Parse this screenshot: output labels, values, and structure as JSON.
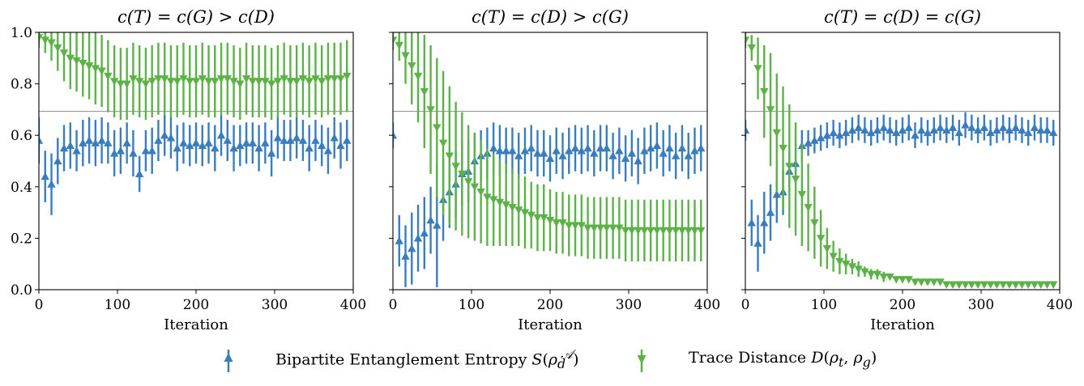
{
  "chart_data": [
    {
      "type": "line",
      "title": "c(T) = c(G) > c(D)",
      "xlabel": "Iteration",
      "ylabel": "",
      "xlim": [
        0,
        400
      ],
      "ylim": [
        0,
        1.0
      ],
      "xticks": [
        "0",
        "100",
        "200",
        "300",
        "400"
      ],
      "yticks": [
        "0.0",
        "0.2",
        "0.4",
        "0.6",
        "0.8",
        "1.0"
      ],
      "reference_line": 0.693,
      "x": [
        0,
        8,
        16,
        24,
        32,
        40,
        48,
        56,
        64,
        72,
        80,
        88,
        96,
        104,
        112,
        120,
        128,
        136,
        144,
        152,
        160,
        168,
        176,
        184,
        192,
        200,
        208,
        216,
        224,
        232,
        240,
        248,
        256,
        264,
        272,
        280,
        288,
        296,
        304,
        312,
        320,
        328,
        336,
        344,
        352,
        360,
        368,
        376,
        384,
        392
      ],
      "series": [
        {
          "name": "Bipartite Entanglement Entropy S(ρ_d^A)",
          "color": "#3a7dbf",
          "marker": "triangle-up",
          "values": [
            0.58,
            0.44,
            0.41,
            0.5,
            0.55,
            0.56,
            0.54,
            0.57,
            0.58,
            0.57,
            0.58,
            0.57,
            0.53,
            0.54,
            0.57,
            0.53,
            0.45,
            0.54,
            0.54,
            0.58,
            0.6,
            0.59,
            0.55,
            0.57,
            0.56,
            0.57,
            0.56,
            0.57,
            0.55,
            0.6,
            0.58,
            0.55,
            0.56,
            0.57,
            0.57,
            0.55,
            0.57,
            0.53,
            0.59,
            0.58,
            0.58,
            0.59,
            0.58,
            0.55,
            0.58,
            0.56,
            0.54,
            0.59,
            0.56,
            0.58
          ],
          "err": [
            0.09,
            0.1,
            0.12,
            0.09,
            0.09,
            0.09,
            0.08,
            0.09,
            0.09,
            0.09,
            0.09,
            0.08,
            0.09,
            0.09,
            0.08,
            0.09,
            0.07,
            0.08,
            0.09,
            0.08,
            0.08,
            0.08,
            0.09,
            0.08,
            0.08,
            0.08,
            0.08,
            0.08,
            0.09,
            0.08,
            0.08,
            0.09,
            0.08,
            0.08,
            0.08,
            0.09,
            0.08,
            0.09,
            0.08,
            0.08,
            0.08,
            0.08,
            0.08,
            0.09,
            0.08,
            0.08,
            0.09,
            0.08,
            0.09,
            0.08
          ]
        },
        {
          "name": "Trace Distance D(ρ_t, ρ_g)",
          "color": "#5cb247",
          "marker": "triangle-down",
          "values": [
            0.98,
            0.97,
            0.96,
            0.94,
            0.92,
            0.9,
            0.89,
            0.88,
            0.87,
            0.86,
            0.85,
            0.83,
            0.81,
            0.8,
            0.8,
            0.82,
            0.81,
            0.8,
            0.81,
            0.82,
            0.82,
            0.81,
            0.81,
            0.82,
            0.81,
            0.81,
            0.82,
            0.81,
            0.81,
            0.82,
            0.82,
            0.81,
            0.8,
            0.82,
            0.81,
            0.81,
            0.81,
            0.8,
            0.81,
            0.82,
            0.81,
            0.81,
            0.82,
            0.81,
            0.82,
            0.81,
            0.82,
            0.82,
            0.82,
            0.83
          ],
          "err": [
            0.04,
            0.05,
            0.07,
            0.09,
            0.11,
            0.12,
            0.12,
            0.13,
            0.13,
            0.14,
            0.14,
            0.14,
            0.14,
            0.14,
            0.14,
            0.14,
            0.14,
            0.14,
            0.14,
            0.14,
            0.14,
            0.14,
            0.14,
            0.14,
            0.14,
            0.14,
            0.14,
            0.14,
            0.14,
            0.14,
            0.14,
            0.14,
            0.14,
            0.14,
            0.14,
            0.14,
            0.14,
            0.14,
            0.14,
            0.14,
            0.14,
            0.14,
            0.14,
            0.14,
            0.14,
            0.14,
            0.14,
            0.14,
            0.14,
            0.14
          ]
        }
      ]
    },
    {
      "type": "line",
      "title": "c(T) = c(D) > c(G)",
      "xlabel": "Iteration",
      "ylabel": "",
      "xlim": [
        0,
        400
      ],
      "ylim": [
        0,
        1.0
      ],
      "xticks": [
        "0",
        "100",
        "200",
        "300",
        "400"
      ],
      "yticks": [
        "0.0",
        "0.2",
        "0.4",
        "0.6",
        "0.8",
        "1.0"
      ],
      "reference_line": 0.693,
      "x": [
        0,
        8,
        16,
        24,
        32,
        40,
        48,
        56,
        64,
        72,
        80,
        88,
        96,
        104,
        112,
        120,
        128,
        136,
        144,
        152,
        160,
        168,
        176,
        184,
        192,
        200,
        208,
        216,
        224,
        232,
        240,
        248,
        256,
        264,
        272,
        280,
        288,
        296,
        304,
        312,
        320,
        328,
        336,
        344,
        352,
        360,
        368,
        376,
        384,
        392
      ],
      "series": [
        {
          "name": "Bipartite Entanglement Entropy S(ρ_d^A)",
          "color": "#3a7dbf",
          "marker": "triangle-up",
          "values": [
            0.6,
            0.19,
            0.13,
            0.16,
            0.2,
            0.22,
            0.27,
            0.25,
            0.35,
            0.38,
            0.41,
            0.45,
            0.46,
            0.5,
            0.52,
            0.53,
            0.55,
            0.54,
            0.54,
            0.54,
            0.52,
            0.54,
            0.55,
            0.53,
            0.53,
            0.51,
            0.54,
            0.52,
            0.54,
            0.55,
            0.54,
            0.55,
            0.53,
            0.55,
            0.55,
            0.52,
            0.54,
            0.51,
            0.53,
            0.5,
            0.54,
            0.55,
            0.56,
            0.53,
            0.55,
            0.52,
            0.55,
            0.52,
            0.54,
            0.55
          ],
          "err": [
            0.05,
            0.1,
            0.12,
            0.14,
            0.13,
            0.14,
            0.13,
            0.24,
            0.16,
            0.14,
            0.13,
            0.12,
            0.12,
            0.11,
            0.1,
            0.1,
            0.1,
            0.1,
            0.09,
            0.09,
            0.09,
            0.09,
            0.09,
            0.09,
            0.09,
            0.09,
            0.09,
            0.09,
            0.09,
            0.09,
            0.09,
            0.09,
            0.09,
            0.09,
            0.09,
            0.09,
            0.09,
            0.09,
            0.09,
            0.09,
            0.09,
            0.09,
            0.09,
            0.09,
            0.09,
            0.09,
            0.09,
            0.09,
            0.09,
            0.09
          ]
        },
        {
          "name": "Trace Distance D(ρ_t, ρ_g)",
          "color": "#5cb247",
          "marker": "triangle-down",
          "values": [
            0.97,
            0.95,
            0.91,
            0.87,
            0.83,
            0.77,
            0.7,
            0.63,
            0.57,
            0.52,
            0.48,
            0.45,
            0.42,
            0.4,
            0.38,
            0.36,
            0.35,
            0.34,
            0.33,
            0.32,
            0.31,
            0.3,
            0.29,
            0.28,
            0.28,
            0.27,
            0.26,
            0.26,
            0.25,
            0.25,
            0.25,
            0.24,
            0.24,
            0.24,
            0.24,
            0.24,
            0.24,
            0.23,
            0.23,
            0.23,
            0.23,
            0.23,
            0.23,
            0.23,
            0.23,
            0.23,
            0.23,
            0.23,
            0.23,
            0.23
          ],
          "err": [
            0.04,
            0.06,
            0.11,
            0.15,
            0.18,
            0.22,
            0.25,
            0.27,
            0.28,
            0.27,
            0.25,
            0.24,
            0.22,
            0.21,
            0.2,
            0.19,
            0.18,
            0.17,
            0.16,
            0.15,
            0.14,
            0.14,
            0.13,
            0.13,
            0.13,
            0.12,
            0.12,
            0.12,
            0.12,
            0.12,
            0.12,
            0.12,
            0.12,
            0.12,
            0.12,
            0.12,
            0.12,
            0.12,
            0.12,
            0.12,
            0.12,
            0.12,
            0.12,
            0.12,
            0.12,
            0.12,
            0.12,
            0.12,
            0.12,
            0.12
          ]
        }
      ]
    },
    {
      "type": "line",
      "title": "c(T) = c(D) = c(G)",
      "xlabel": "Iteration",
      "ylabel": "",
      "xlim": [
        0,
        400
      ],
      "ylim": [
        0,
        1.0
      ],
      "xticks": [
        "0",
        "100",
        "200",
        "300",
        "400"
      ],
      "yticks": [
        "0.0",
        "0.2",
        "0.4",
        "0.6",
        "0.8",
        "1.0"
      ],
      "reference_line": 0.693,
      "x": [
        0,
        8,
        16,
        24,
        32,
        40,
        48,
        56,
        64,
        72,
        80,
        88,
        96,
        104,
        112,
        120,
        128,
        136,
        144,
        152,
        160,
        168,
        176,
        184,
        192,
        200,
        208,
        216,
        224,
        232,
        240,
        248,
        256,
        264,
        272,
        280,
        288,
        296,
        304,
        312,
        320,
        328,
        336,
        344,
        352,
        360,
        368,
        376,
        384,
        392
      ],
      "series": [
        {
          "name": "Bipartite Entanglement Entropy S(ρ_d^A)",
          "color": "#3a7dbf",
          "marker": "triangle-up",
          "values": [
            0.62,
            0.26,
            0.18,
            0.26,
            0.3,
            0.37,
            0.38,
            0.46,
            0.49,
            0.56,
            0.57,
            0.58,
            0.59,
            0.6,
            0.61,
            0.6,
            0.61,
            0.62,
            0.63,
            0.62,
            0.61,
            0.62,
            0.63,
            0.62,
            0.61,
            0.62,
            0.63,
            0.6,
            0.62,
            0.61,
            0.62,
            0.63,
            0.62,
            0.63,
            0.61,
            0.64,
            0.63,
            0.62,
            0.63,
            0.61,
            0.62,
            0.63,
            0.62,
            0.63,
            0.62,
            0.61,
            0.63,
            0.62,
            0.62,
            0.61
          ],
          "err": [
            0.04,
            0.09,
            0.11,
            0.12,
            0.11,
            0.11,
            0.09,
            0.08,
            0.08,
            0.06,
            0.05,
            0.05,
            0.05,
            0.05,
            0.05,
            0.05,
            0.05,
            0.05,
            0.05,
            0.05,
            0.05,
            0.05,
            0.05,
            0.05,
            0.05,
            0.05,
            0.05,
            0.05,
            0.05,
            0.05,
            0.05,
            0.05,
            0.05,
            0.05,
            0.05,
            0.05,
            0.05,
            0.05,
            0.05,
            0.05,
            0.05,
            0.05,
            0.05,
            0.05,
            0.05,
            0.05,
            0.05,
            0.05,
            0.05,
            0.05
          ]
        },
        {
          "name": "Trace Distance D(ρ_t, ρ_g)",
          "color": "#5cb247",
          "marker": "triangle-down",
          "values": [
            0.97,
            0.94,
            0.86,
            0.77,
            0.7,
            0.61,
            0.55,
            0.48,
            0.43,
            0.37,
            0.32,
            0.26,
            0.2,
            0.16,
            0.13,
            0.11,
            0.1,
            0.09,
            0.08,
            0.07,
            0.06,
            0.06,
            0.05,
            0.05,
            0.04,
            0.04,
            0.04,
            0.03,
            0.03,
            0.03,
            0.03,
            0.03,
            0.02,
            0.02,
            0.02,
            0.02,
            0.02,
            0.02,
            0.02,
            0.02,
            0.02,
            0.02,
            0.02,
            0.02,
            0.02,
            0.02,
            0.02,
            0.02,
            0.02,
            0.02
          ],
          "err": [
            0.03,
            0.05,
            0.12,
            0.18,
            0.22,
            0.23,
            0.24,
            0.24,
            0.22,
            0.2,
            0.17,
            0.14,
            0.11,
            0.08,
            0.06,
            0.05,
            0.04,
            0.03,
            0.03,
            0.02,
            0.02,
            0.02,
            0.02,
            0.01,
            0.01,
            0.01,
            0.01,
            0.01,
            0.01,
            0.01,
            0.01,
            0.01,
            0.01,
            0.01,
            0.01,
            0.01,
            0.01,
            0.01,
            0.01,
            0.01,
            0.01,
            0.01,
            0.01,
            0.01,
            0.01,
            0.01,
            0.01,
            0.01,
            0.01,
            0.01
          ]
        }
      ]
    }
  ],
  "legend": {
    "items": [
      {
        "label": "Bipartite Entanglement Entropy S(ρ_d^A)",
        "color": "#3a7dbf",
        "marker": "triangle-up"
      },
      {
        "label": "Trace Distance D(ρ_t, ρ_g)",
        "color": "#5cb247",
        "marker": "triangle-down"
      }
    ]
  }
}
